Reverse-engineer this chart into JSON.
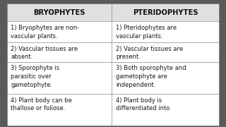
{
  "title_left": "BRYOPHYTES",
  "title_right": "PTERIDOPHYTES",
  "rows": [
    [
      "1) Bryophytes are non-\nvascular plants.",
      "1) Pteridophytes are\nvascular plants."
    ],
    [
      "2) Vascular tissues are\nabsent.",
      "2) Vascular tissues are\npresent."
    ],
    [
      "3) Sporophyte is\nparasitic over\ngametophyte.",
      "3) Both sporophyte and\ngametophyte are\nindependent."
    ],
    [
      "4) Plant body can be\nthallose or foliose.",
      "4) Plant body is\ndifferentiated into"
    ]
  ],
  "outer_bg": "#5a5a5a",
  "table_bg": "#ffffff",
  "header_bg": "#e0e0de",
  "line_color": "#888888",
  "text_color": "#1a1a1a",
  "header_text_color": "#111111",
  "font_size": 6.0,
  "header_font_size": 7.2
}
